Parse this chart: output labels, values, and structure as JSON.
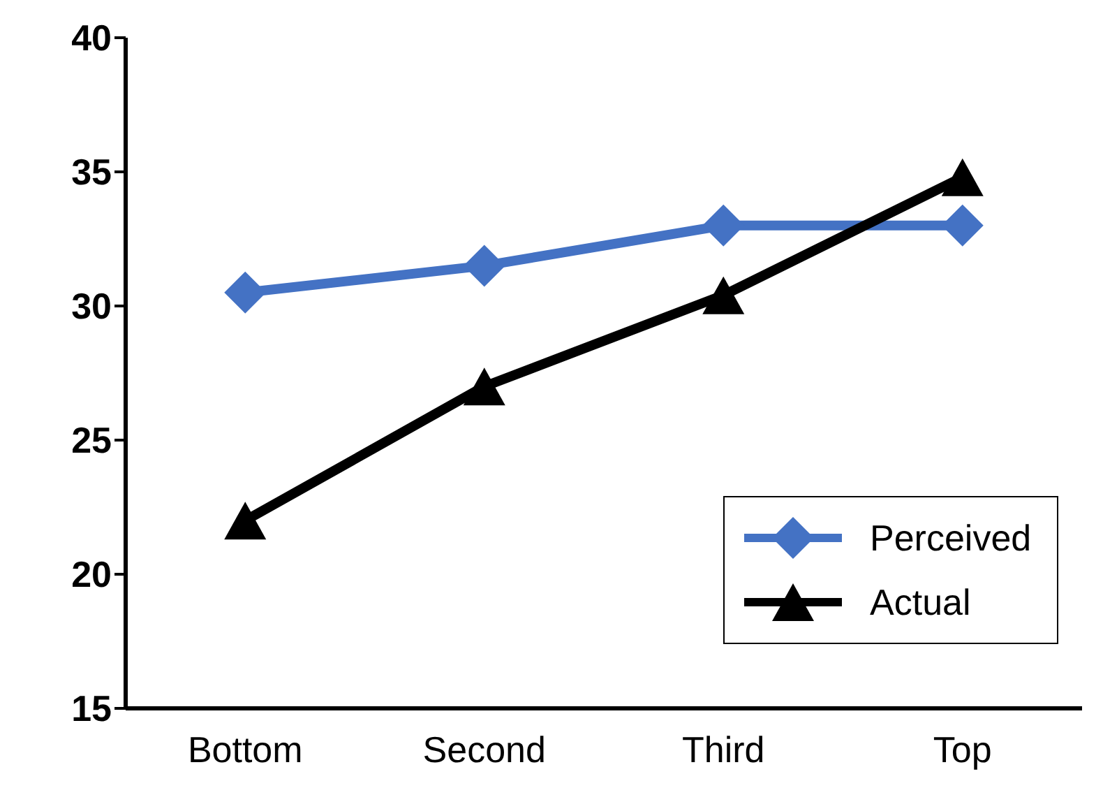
{
  "chart_data": {
    "type": "line",
    "categories": [
      "Bottom",
      "Second",
      "Third",
      "Top"
    ],
    "series": [
      {
        "name": "Perceived",
        "color": "#4472c4",
        "values": [
          30.5,
          31.5,
          33.0,
          33.0
        ],
        "marker": "diamond"
      },
      {
        "name": "Actual",
        "color": "#000000",
        "values": [
          22.0,
          27.0,
          30.4,
          34.8
        ],
        "marker": "triangle"
      }
    ],
    "ylim": [
      15,
      40
    ],
    "yticks": [
      15,
      20,
      25,
      30,
      35,
      40
    ],
    "grid": false,
    "legend": "bottom right",
    "line_style": "solid"
  }
}
